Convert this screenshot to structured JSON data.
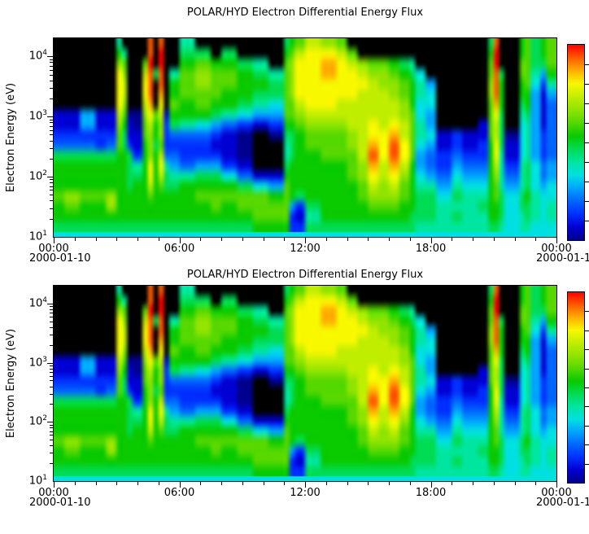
{
  "chart_data": {
    "type": "heatmap",
    "title": "POLAR/HYD  Electron Differential Energy Flux",
    "panel_count": 2,
    "panels_note": "two stacked panels showing identical spectrogram data",
    "ylabel": "Electron Energy (eV)",
    "y_scale": "log",
    "y_range_eV": [
      10,
      20000
    ],
    "y_tick_labels": [
      "10^4",
      "10^3",
      "10^2",
      "10^1"
    ],
    "x_range_hours": [
      0,
      24
    ],
    "x_tick_labels": [
      "00:00",
      "06:00",
      "12:00",
      "18:00",
      "00:00"
    ],
    "x_date_left": "2000-01-10",
    "x_date_right": "2000-01-1",
    "colorbar": {
      "orientation": "vertical",
      "high_at": "top",
      "tick_count": 9
    },
    "no_data_color": "#000000",
    "colormap": [
      "#00008E",
      "#0000D2",
      "#0030FF",
      "#0066FF",
      "#00A4FF",
      "#00E0E0",
      "#00E6A0",
      "#00DC55",
      "#0ACA00",
      "#55D800",
      "#90E400",
      "#C0EE00",
      "#F8F800",
      "#FFB000",
      "#FF5C00",
      "#FF0000"
    ],
    "grid": {
      "cols": 96,
      "rows": 20,
      "time_span_hours": 24,
      "encoding": "segments of [width_in_15min_columns, energy profile top(20keV)->bottom(10eV)], chars 0-f = flux intensity low->high, '.' = no data (black)",
      "segments": [
        [
          2,
          ".......1123788898875"
        ],
        [
          3,
          ".......11237888a9875"
        ],
        [
          3,
          ".......4423788898875"
        ],
        [
          2,
          ".......1122788898875"
        ],
        [
          2,
          ".......11237888aa875"
        ],
        [
          1,
          "68accccba99888888875"
        ],
        [
          1,
          ".69abba9877888888875"
        ],
        [
          1,
          ".......0112777788875"
        ],
        [
          2,
          ".......0011267888875"
        ],
        [
          1,
          "..9bccba998888888875"
        ],
        [
          1,
          "eefeeedcbaaaccb98875"
        ],
        [
          1,
          "...7...9887888888875"
        ],
        [
          1,
          "effeedcbaa9bcb988875"
        ],
        [
          1,
          ".......1222367788875"
        ],
        [
          2,
          "...68898732346788875"
        ],
        [
          3,
          "67899988632236888875"
        ],
        [
          3,
          ".79aa998532247898875"
        ],
        [
          2,
          "..899987421247899875"
        ],
        [
          3,
          ".7899886311125898875"
        ],
        [
          3,
          "..788875200013799875"
        ],
        [
          3,
          "..6787641....1599985"
        ],
        [
          3,
          "...6775420...1489985"
        ],
        [
          1,
          "78999999876678999985"
        ],
        [
          1,
          "89aaaa99877788884225"
        ],
        [
          2,
          "9bccccba988888872125"
        ],
        [
          3,
          "bccccccba99888887675"
        ],
        [
          3,
          "acddcccba99988888875"
        ],
        [
          2,
          "9bccccbba99988888875"
        ],
        [
          2,
          ".9bcccbbbaa999888875"
        ],
        [
          2,
          "..abcbbbbbbbaa998875"
        ],
        [
          2,
          "..9abbbbccdedcba9875"
        ],
        [
          2,
          "..9aabbbbcccbbaa9875"
        ],
        [
          2,
          "..89aabbcdeedcba9875"
        ],
        [
          2,
          "..7899aabbccba998875"
        ],
        [
          1,
          "..678889999988888775"
        ],
        [
          2,
          "...56655665445677765"
        ],
        [
          2,
          "....4554454334677765"
        ],
        [
          3,
          ".........11223456665"
        ],
        [
          2,
          ".........22345676765"
        ],
        [
          3,
          ".........11234566665"
        ],
        [
          2,
          "........112234567665"
        ],
        [
          1,
          "7899aa99998888888875"
        ],
        [
          1,
          "effeeedcbbccba998875"
        ],
        [
          1,
          "...78887777666677765"
        ],
        [
          3,
          ".........01123455555"
        ],
        [
          1,
          "88998876555566677665"
        ],
        [
          1,
          "99999887666677787765"
        ],
        [
          2,
          "77765444444455566655"
        ],
        [
          1,
          "88742111122233455555"
        ],
        [
          2,
          "99986433333344556655"
        ]
      ]
    }
  }
}
